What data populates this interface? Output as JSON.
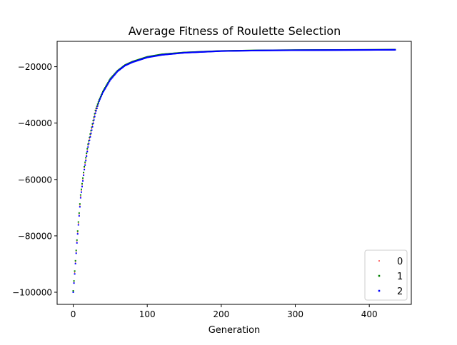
{
  "chart_data": {
    "type": "scatter",
    "title": "Average Fitness of Roulette Selection",
    "xlabel": "Generation",
    "ylabel": "",
    "xlim": [
      -21.75,
      456.75
    ],
    "ylim": [
      -104300,
      -11000
    ],
    "xticks": [
      0,
      100,
      200,
      300,
      400
    ],
    "xtick_labels": [
      "0",
      "100",
      "200",
      "300",
      "400"
    ],
    "yticks": [
      -100000,
      -80000,
      -60000,
      -40000,
      -20000
    ],
    "ytick_labels": [
      "−100000",
      "−80000",
      "−60000",
      "−40000",
      "−20000"
    ],
    "grid": false,
    "legend_position": "lower right",
    "series": [
      {
        "name": "0",
        "color": "#ff0000",
        "marker_size": 1,
        "x_max": 435,
        "points": [
          [
            0,
            -100000
          ],
          [
            2,
            -93000
          ],
          [
            5,
            -82000
          ],
          [
            10,
            -66000
          ],
          [
            15,
            -56000
          ],
          [
            20,
            -48000
          ],
          [
            25,
            -42000
          ],
          [
            30,
            -36000
          ],
          [
            35,
            -32000
          ],
          [
            40,
            -29000
          ],
          [
            50,
            -24500
          ],
          [
            60,
            -21500
          ],
          [
            70,
            -19500
          ],
          [
            80,
            -18300
          ],
          [
            100,
            -16600
          ],
          [
            120,
            -15700
          ],
          [
            150,
            -15000
          ],
          [
            200,
            -14400
          ],
          [
            250,
            -14200
          ],
          [
            300,
            -14100
          ],
          [
            350,
            -14050
          ],
          [
            400,
            -14000
          ],
          [
            435,
            -13950
          ]
        ]
      },
      {
        "name": "1",
        "color": "#008000",
        "marker_size": 2,
        "x_max": 435,
        "points": [
          [
            0,
            -99500
          ],
          [
            2,
            -92500
          ],
          [
            5,
            -81500
          ],
          [
            10,
            -65500
          ],
          [
            15,
            -55500
          ],
          [
            20,
            -47500
          ],
          [
            25,
            -41500
          ],
          [
            30,
            -35500
          ],
          [
            35,
            -31800
          ],
          [
            40,
            -28800
          ],
          [
            50,
            -24300
          ],
          [
            60,
            -21400
          ],
          [
            70,
            -19400
          ],
          [
            80,
            -18200
          ],
          [
            100,
            -16500
          ],
          [
            120,
            -15600
          ],
          [
            150,
            -14950
          ],
          [
            200,
            -14400
          ],
          [
            250,
            -14200
          ],
          [
            300,
            -14100
          ],
          [
            350,
            -14050
          ],
          [
            400,
            -14000
          ],
          [
            435,
            -13950
          ]
        ]
      },
      {
        "name": "2",
        "color": "#0000ff",
        "marker_size": 2,
        "x_max": 435,
        "points": [
          [
            0,
            -100000
          ],
          [
            2,
            -93500
          ],
          [
            5,
            -82500
          ],
          [
            10,
            -66500
          ],
          [
            15,
            -56500
          ],
          [
            20,
            -48500
          ],
          [
            25,
            -42500
          ],
          [
            30,
            -36500
          ],
          [
            35,
            -32200
          ],
          [
            40,
            -29200
          ],
          [
            50,
            -24700
          ],
          [
            60,
            -21600
          ],
          [
            70,
            -19600
          ],
          [
            80,
            -18400
          ],
          [
            100,
            -16700
          ],
          [
            120,
            -15800
          ],
          [
            150,
            -15050
          ],
          [
            200,
            -14450
          ],
          [
            250,
            -14250
          ],
          [
            300,
            -14150
          ],
          [
            350,
            -14100
          ],
          [
            400,
            -14050
          ],
          [
            435,
            -14000
          ]
        ]
      }
    ]
  }
}
